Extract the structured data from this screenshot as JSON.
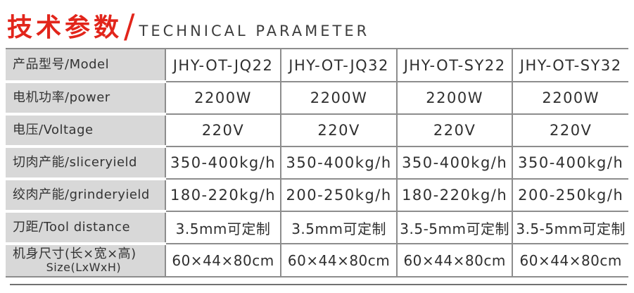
{
  "header": {
    "title_zh": "技术参数",
    "slash": "/",
    "title_en": "TECHNICAL PARAMETER",
    "accent_color": "#e2251b",
    "en_color": "#3d3d3d"
  },
  "table": {
    "label_bg": "#d8d8d8",
    "border_color": "#8d8d8d",
    "text_color": "#2f2f2f",
    "rows": [
      {
        "label": "产品型号/Model",
        "values": [
          "JHY-OT-JQ22",
          "JHY-OT-JQ32",
          "JHY-OT-SY22",
          "JHY-OT-SY32"
        ]
      },
      {
        "label": "电机功率/power",
        "values": [
          "2200W",
          "2200W",
          "2200W",
          "2200W"
        ]
      },
      {
        "label": "电压/Voltage",
        "values": [
          "220V",
          "220V",
          "220V",
          "220V"
        ]
      },
      {
        "label": "切肉产能/sliceryield",
        "values": [
          "350-400kg/h",
          "350-400kg/h",
          "350-400kg/h",
          "350-400kg/h"
        ]
      },
      {
        "label": "绞肉产能/grinderyield",
        "values": [
          "180-220kg/h",
          "200-250kg/h",
          "180-220kg/h",
          "200-250kg/h"
        ]
      },
      {
        "label": "刀距/Tool distance",
        "values": [
          "3.5mm可定制",
          "3.5mm可定制",
          "3.5-5mm可定制",
          "3.5-5mm可定制"
        ]
      },
      {
        "label": "机身尺寸(长×宽×高)",
        "label2": "Size(LxWxH)",
        "values": [
          "60×44×80cm",
          "60×44×80cm",
          "60×44×80cm",
          "60×44×80cm"
        ]
      }
    ]
  }
}
